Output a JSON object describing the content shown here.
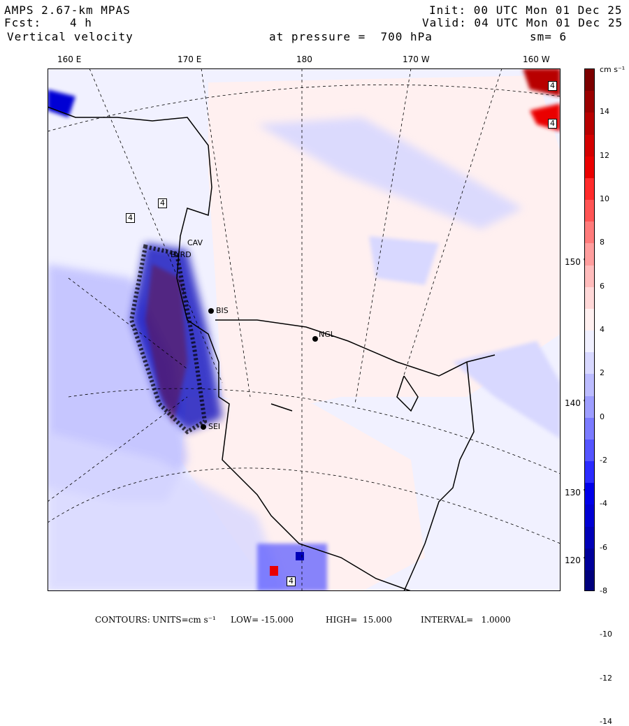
{
  "header": {
    "model": "AMPS 2.67-km MPAS",
    "fcst_label": "Fcst:",
    "fcst_value": "4 h",
    "field": "Vertical velocity",
    "init": "Init: 00 UTC Mon 01 Dec 25",
    "valid": "Valid: 04 UTC Mon 01 Dec 25",
    "pressure": "at pressure =  700 hPa",
    "smoothing": "sm= 6"
  },
  "axes": {
    "top_ticks": [
      "160 E",
      "170 E",
      "180",
      "170 W",
      "160 W"
    ],
    "right_ticks": [
      "150 W",
      "140 W",
      "130 W",
      "120 W"
    ]
  },
  "stations": [
    "BIS",
    "NGL",
    "SEI",
    "CAV",
    "BYRD"
  ],
  "contour_box_label": "4",
  "colorbar": {
    "units_label": "cm s⁻¹",
    "levels": [
      "14",
      "12",
      "10",
      "8",
      "6",
      "4",
      "2",
      "0",
      "-2",
      "-4",
      "-6",
      "-8",
      "-10",
      "-12",
      "-14"
    ],
    "colors": [
      "#7d0000",
      "#9b0000",
      "#b80000",
      "#d40000",
      "#ea0000",
      "#ff2b2b",
      "#ff5555",
      "#ff7b7b",
      "#ff9e9e",
      "#ffbcbc",
      "#ffd8d8",
      "#fff0f0",
      "#f0f0ff",
      "#d8d8ff",
      "#bcbcff",
      "#9e9eff",
      "#7b7bff",
      "#5555ff",
      "#2b2bff",
      "#0000ea",
      "#0000d4",
      "#0000b8",
      "#00009b",
      "#00007d"
    ]
  },
  "footer": {
    "contours_label": "CONTOURS:",
    "units": "UNITS=cm s⁻¹",
    "low": "LOW= -15.000",
    "high": "HIGH=  15.000",
    "interval": "INTERVAL=   1.0000"
  }
}
